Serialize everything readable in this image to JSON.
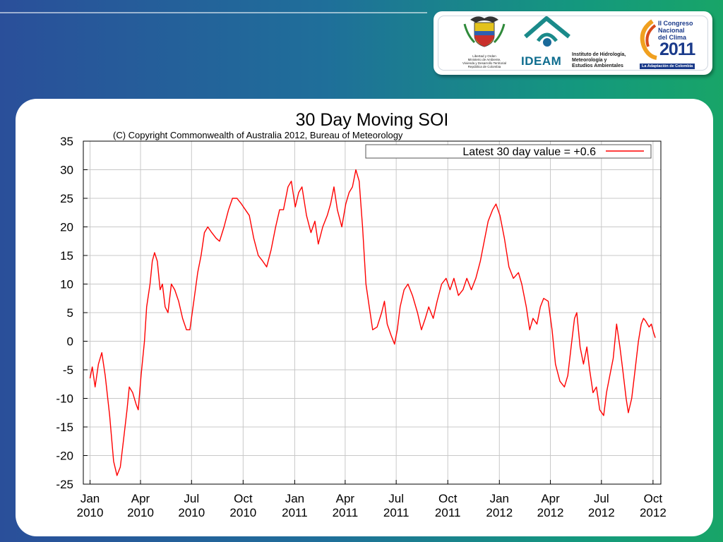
{
  "logos": {
    "shield_caption": [
      "Libertad y Orden",
      "Ministerio de Ambiente,",
      "Vivienda y Desarrollo Territorial",
      "República de Colombia"
    ],
    "ideam_word": "IDEAM",
    "ideam_subtitle": [
      "Instituto de Hidrología,",
      "Meteorología y",
      "Estudios Ambientales"
    ],
    "congreso_lines": [
      "II Congreso",
      "Nacional",
      "del Clima"
    ],
    "congreso_year": "2011",
    "congreso_tag": "La Adaptación de Colombia"
  },
  "chart_data": {
    "type": "line",
    "title": "30 Day Moving SOI",
    "subtitle": "(C) Copyright Commonwealth of Australia 2012, Bureau of Meteorology",
    "legend": {
      "label": "Latest 30 day value = +0.6",
      "position": "top-right"
    },
    "xlabel": "",
    "ylabel": "",
    "ylim": [
      -25,
      35
    ],
    "yticks": [
      35,
      30,
      25,
      20,
      15,
      10,
      5,
      0,
      -5,
      -10,
      -15,
      -20,
      -25
    ],
    "xlim": [
      "2009-12-20",
      "2012-10-15"
    ],
    "xticks": [
      {
        "date": "2010-01-01",
        "label": [
          "Jan",
          "2010"
        ]
      },
      {
        "date": "2010-04-01",
        "label": [
          "Apr",
          "2010"
        ]
      },
      {
        "date": "2010-07-01",
        "label": [
          "Jul",
          "2010"
        ]
      },
      {
        "date": "2010-10-01",
        "label": [
          "Oct",
          "2010"
        ]
      },
      {
        "date": "2011-01-01",
        "label": [
          "Jan",
          "2011"
        ]
      },
      {
        "date": "2011-04-01",
        "label": [
          "Apr",
          "2011"
        ]
      },
      {
        "date": "2011-07-01",
        "label": [
          "Jul",
          "2011"
        ]
      },
      {
        "date": "2011-10-01",
        "label": [
          "Oct",
          "2011"
        ]
      },
      {
        "date": "2012-01-01",
        "label": [
          "Jan",
          "2012"
        ]
      },
      {
        "date": "2012-04-01",
        "label": [
          "Apr",
          "2012"
        ]
      },
      {
        "date": "2012-07-01",
        "label": [
          "Jul",
          "2012"
        ]
      },
      {
        "date": "2012-10-01",
        "label": [
          "Oct",
          "2012"
        ]
      }
    ],
    "grid": true,
    "series": [
      {
        "color": "#ff0000",
        "points": [
          [
            "2010-01-01",
            -6.5
          ],
          [
            "2010-01-05",
            -4.5
          ],
          [
            "2010-01-10",
            -8
          ],
          [
            "2010-01-16",
            -4
          ],
          [
            "2010-01-22",
            -2
          ],
          [
            "2010-01-28",
            -6
          ],
          [
            "2010-02-05",
            -13
          ],
          [
            "2010-02-12",
            -21
          ],
          [
            "2010-02-18",
            -23.5
          ],
          [
            "2010-02-24",
            -22
          ],
          [
            "2010-03-02",
            -17
          ],
          [
            "2010-03-08",
            -12
          ],
          [
            "2010-03-12",
            -8
          ],
          [
            "2010-03-18",
            -9
          ],
          [
            "2010-03-24",
            -11
          ],
          [
            "2010-03-28",
            -12
          ],
          [
            "2010-04-02",
            -6
          ],
          [
            "2010-04-08",
            0
          ],
          [
            "2010-04-12",
            6
          ],
          [
            "2010-04-18",
            10
          ],
          [
            "2010-04-22",
            14
          ],
          [
            "2010-04-26",
            15.5
          ],
          [
            "2010-05-01",
            14
          ],
          [
            "2010-05-06",
            9
          ],
          [
            "2010-05-10",
            10
          ],
          [
            "2010-05-15",
            6
          ],
          [
            "2010-05-20",
            5
          ],
          [
            "2010-05-26",
            10
          ],
          [
            "2010-06-01",
            9
          ],
          [
            "2010-06-08",
            7
          ],
          [
            "2010-06-15",
            4
          ],
          [
            "2010-06-22",
            2
          ],
          [
            "2010-06-28",
            2
          ],
          [
            "2010-07-05",
            7
          ],
          [
            "2010-07-12",
            12
          ],
          [
            "2010-07-18",
            15
          ],
          [
            "2010-07-24",
            19
          ],
          [
            "2010-07-30",
            20
          ],
          [
            "2010-08-06",
            19
          ],
          [
            "2010-08-14",
            18
          ],
          [
            "2010-08-20",
            17.5
          ],
          [
            "2010-08-28",
            20
          ],
          [
            "2010-09-05",
            23
          ],
          [
            "2010-09-12",
            25
          ],
          [
            "2010-09-20",
            25
          ],
          [
            "2010-09-28",
            24
          ],
          [
            "2010-10-05",
            23
          ],
          [
            "2010-10-12",
            22
          ],
          [
            "2010-10-20",
            18
          ],
          [
            "2010-10-28",
            15
          ],
          [
            "2010-11-05",
            14
          ],
          [
            "2010-11-12",
            13
          ],
          [
            "2010-11-20",
            16
          ],
          [
            "2010-11-28",
            20
          ],
          [
            "2010-12-05",
            23
          ],
          [
            "2010-12-12",
            23
          ],
          [
            "2010-12-20",
            27
          ],
          [
            "2010-12-26",
            28
          ],
          [
            "2011-01-02",
            23.5
          ],
          [
            "2011-01-08",
            26
          ],
          [
            "2011-01-14",
            27
          ],
          [
            "2011-01-22",
            22
          ],
          [
            "2011-01-30",
            19
          ],
          [
            "2011-02-06",
            21
          ],
          [
            "2011-02-12",
            17
          ],
          [
            "2011-02-20",
            20
          ],
          [
            "2011-02-28",
            22
          ],
          [
            "2011-03-06",
            24
          ],
          [
            "2011-03-12",
            27
          ],
          [
            "2011-03-18",
            23
          ],
          [
            "2011-03-26",
            20
          ],
          [
            "2011-04-02",
            24
          ],
          [
            "2011-04-08",
            26
          ],
          [
            "2011-04-14",
            27
          ],
          [
            "2011-04-20",
            30
          ],
          [
            "2011-04-26",
            28
          ],
          [
            "2011-05-02",
            20
          ],
          [
            "2011-05-08",
            10
          ],
          [
            "2011-05-14",
            6
          ],
          [
            "2011-05-20",
            2
          ],
          [
            "2011-05-28",
            2.5
          ],
          [
            "2011-06-05",
            5
          ],
          [
            "2011-06-10",
            7
          ],
          [
            "2011-06-15",
            3
          ],
          [
            "2011-06-22",
            1
          ],
          [
            "2011-06-28",
            -0.5
          ],
          [
            "2011-07-03",
            2
          ],
          [
            "2011-07-08",
            6
          ],
          [
            "2011-07-15",
            9
          ],
          [
            "2011-07-22",
            10
          ],
          [
            "2011-07-30",
            8
          ],
          [
            "2011-08-08",
            5
          ],
          [
            "2011-08-15",
            2
          ],
          [
            "2011-08-22",
            4
          ],
          [
            "2011-08-28",
            6
          ],
          [
            "2011-09-05",
            4
          ],
          [
            "2011-09-12",
            7
          ],
          [
            "2011-09-20",
            10
          ],
          [
            "2011-09-28",
            11
          ],
          [
            "2011-10-05",
            9
          ],
          [
            "2011-10-12",
            11
          ],
          [
            "2011-10-20",
            8
          ],
          [
            "2011-10-28",
            9
          ],
          [
            "2011-11-04",
            11
          ],
          [
            "2011-11-12",
            9
          ],
          [
            "2011-11-20",
            11
          ],
          [
            "2011-11-28",
            14
          ],
          [
            "2011-12-06",
            18
          ],
          [
            "2011-12-12",
            21
          ],
          [
            "2011-12-20",
            23
          ],
          [
            "2011-12-26",
            24
          ],
          [
            "2012-01-02",
            22
          ],
          [
            "2012-01-10",
            18
          ],
          [
            "2012-01-18",
            13
          ],
          [
            "2012-01-26",
            11
          ],
          [
            "2012-02-04",
            12
          ],
          [
            "2012-02-10",
            10
          ],
          [
            "2012-02-18",
            6
          ],
          [
            "2012-02-24",
            2
          ],
          [
            "2012-03-01",
            4
          ],
          [
            "2012-03-08",
            3
          ],
          [
            "2012-03-14",
            6
          ],
          [
            "2012-03-20",
            7.5
          ],
          [
            "2012-03-28",
            7
          ],
          [
            "2012-04-04",
            2
          ],
          [
            "2012-04-10",
            -4
          ],
          [
            "2012-04-18",
            -7
          ],
          [
            "2012-04-26",
            -8
          ],
          [
            "2012-05-02",
            -6
          ],
          [
            "2012-05-08",
            -1
          ],
          [
            "2012-05-14",
            4
          ],
          [
            "2012-05-18",
            5
          ],
          [
            "2012-05-24",
            -1
          ],
          [
            "2012-05-30",
            -4
          ],
          [
            "2012-06-05",
            -1
          ],
          [
            "2012-06-10",
            -5
          ],
          [
            "2012-06-16",
            -9
          ],
          [
            "2012-06-22",
            -8
          ],
          [
            "2012-06-28",
            -12
          ],
          [
            "2012-07-05",
            -13
          ],
          [
            "2012-07-10",
            -9
          ],
          [
            "2012-07-16",
            -6
          ],
          [
            "2012-07-22",
            -3
          ],
          [
            "2012-07-28",
            3
          ],
          [
            "2012-08-03",
            -1
          ],
          [
            "2012-08-08",
            -5
          ],
          [
            "2012-08-14",
            -10
          ],
          [
            "2012-08-18",
            -12.5
          ],
          [
            "2012-08-24",
            -10
          ],
          [
            "2012-08-30",
            -5
          ],
          [
            "2012-09-05",
            0
          ],
          [
            "2012-09-10",
            3
          ],
          [
            "2012-09-14",
            4
          ],
          [
            "2012-09-18",
            3.5
          ],
          [
            "2012-09-24",
            2.5
          ],
          [
            "2012-09-28",
            3
          ],
          [
            "2012-10-02",
            1.5
          ],
          [
            "2012-10-05",
            0.6
          ]
        ]
      }
    ]
  }
}
